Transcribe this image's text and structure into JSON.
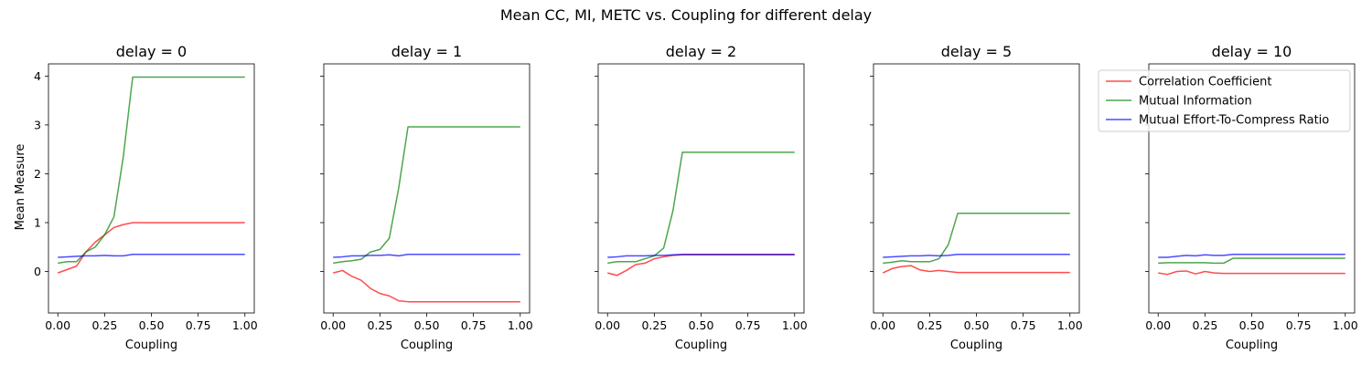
{
  "suptitle": "Mean CC, MI, METC vs. Coupling for different delay",
  "ylabel": "Mean Measure",
  "chart_data": {
    "type": "line",
    "ylim": [
      -0.85,
      4.25
    ],
    "xlim": [
      -0.05,
      1.05
    ],
    "xticks": [
      "0.00",
      "0.25",
      "0.50",
      "0.75",
      "1.00"
    ],
    "yticks": [
      "0",
      "1",
      "2",
      "3",
      "4"
    ],
    "series_meta": [
      {
        "name": "Correlation Coefficient",
        "color": "#ff0000"
      },
      {
        "name": "Mutual Information",
        "color": "#008000"
      },
      {
        "name": "Mutual Effort-To-Compress Ratio",
        "color": "#0000ff"
      }
    ],
    "legend_loc": "upper-right",
    "x": [
      0.0,
      0.05,
      0.1,
      0.15,
      0.2,
      0.25,
      0.3,
      0.35,
      0.4,
      0.45,
      0.5,
      0.55,
      0.6,
      0.65,
      0.7,
      0.75,
      0.8,
      0.85,
      0.9,
      0.95,
      1.0
    ],
    "panels": [
      {
        "title": "delay = 0",
        "xlabel": "Coupling",
        "series": [
          {
            "name": "Correlation Coefficient",
            "values": [
              -0.03,
              0.04,
              0.11,
              0.4,
              0.6,
              0.75,
              0.9,
              0.96,
              1.0,
              1.0,
              1.0,
              1.0,
              1.0,
              1.0,
              1.0,
              1.0,
              1.0,
              1.0,
              1.0,
              1.0,
              1.0
            ]
          },
          {
            "name": "Mutual Information",
            "values": [
              0.17,
              0.2,
              0.2,
              0.4,
              0.5,
              0.75,
              1.12,
              2.35,
              3.98,
              3.98,
              3.98,
              3.98,
              3.98,
              3.98,
              3.98,
              3.98,
              3.98,
              3.98,
              3.98,
              3.98,
              3.98
            ]
          },
          {
            "name": "Mutual Effort-To-Compress Ratio",
            "values": [
              0.29,
              0.3,
              0.31,
              0.32,
              0.32,
              0.33,
              0.32,
              0.32,
              0.35,
              0.35,
              0.35,
              0.35,
              0.35,
              0.35,
              0.35,
              0.35,
              0.35,
              0.35,
              0.35,
              0.35,
              0.35
            ]
          }
        ]
      },
      {
        "title": "delay = 1",
        "xlabel": "Coupling",
        "series": [
          {
            "name": "Correlation Coefficient",
            "values": [
              -0.03,
              0.02,
              -0.1,
              -0.18,
              -0.35,
              -0.45,
              -0.5,
              -0.6,
              -0.62,
              -0.62,
              -0.62,
              -0.62,
              -0.62,
              -0.62,
              -0.62,
              -0.62,
              -0.62,
              -0.62,
              -0.62,
              -0.62,
              -0.62
            ]
          },
          {
            "name": "Mutual Information",
            "values": [
              0.17,
              0.2,
              0.22,
              0.25,
              0.4,
              0.45,
              0.68,
              1.7,
              2.96,
              2.96,
              2.96,
              2.96,
              2.96,
              2.96,
              2.96,
              2.96,
              2.96,
              2.96,
              2.96,
              2.96,
              2.96
            ]
          },
          {
            "name": "Mutual Effort-To-Compress Ratio",
            "values": [
              0.29,
              0.3,
              0.32,
              0.32,
              0.33,
              0.33,
              0.34,
              0.32,
              0.35,
              0.35,
              0.35,
              0.35,
              0.35,
              0.35,
              0.35,
              0.35,
              0.35,
              0.35,
              0.35,
              0.35,
              0.35
            ]
          }
        ]
      },
      {
        "title": "delay = 2",
        "xlabel": "Coupling",
        "series": [
          {
            "name": "Correlation Coefficient",
            "values": [
              -0.03,
              -0.08,
              0.02,
              0.14,
              0.17,
              0.26,
              0.3,
              0.33,
              0.34,
              0.34,
              0.34,
              0.34,
              0.34,
              0.34,
              0.34,
              0.34,
              0.34,
              0.34,
              0.34,
              0.34,
              0.34
            ]
          },
          {
            "name": "Mutual Information",
            "values": [
              0.17,
              0.2,
              0.2,
              0.2,
              0.26,
              0.32,
              0.48,
              1.25,
              2.44,
              2.44,
              2.44,
              2.44,
              2.44,
              2.44,
              2.44,
              2.44,
              2.44,
              2.44,
              2.44,
              2.44,
              2.44
            ]
          },
          {
            "name": "Mutual Effort-To-Compress Ratio",
            "values": [
              0.29,
              0.3,
              0.32,
              0.32,
              0.32,
              0.33,
              0.33,
              0.34,
              0.35,
              0.35,
              0.35,
              0.35,
              0.35,
              0.35,
              0.35,
              0.35,
              0.35,
              0.35,
              0.35,
              0.35,
              0.35
            ]
          }
        ]
      },
      {
        "title": "delay = 5",
        "xlabel": "Coupling",
        "series": [
          {
            "name": "Correlation Coefficient",
            "values": [
              -0.03,
              0.06,
              0.1,
              0.12,
              0.03,
              0.0,
              0.02,
              0.0,
              -0.02,
              -0.02,
              -0.02,
              -0.02,
              -0.02,
              -0.02,
              -0.02,
              -0.02,
              -0.02,
              -0.02,
              -0.02,
              -0.02,
              -0.02
            ]
          },
          {
            "name": "Mutual Information",
            "values": [
              0.17,
              0.19,
              0.22,
              0.2,
              0.2,
              0.2,
              0.26,
              0.55,
              1.19,
              1.19,
              1.19,
              1.19,
              1.19,
              1.19,
              1.19,
              1.19,
              1.19,
              1.19,
              1.19,
              1.19,
              1.19
            ]
          },
          {
            "name": "Mutual Effort-To-Compress Ratio",
            "values": [
              0.29,
              0.3,
              0.31,
              0.32,
              0.32,
              0.33,
              0.32,
              0.33,
              0.35,
              0.35,
              0.35,
              0.35,
              0.35,
              0.35,
              0.35,
              0.35,
              0.35,
              0.35,
              0.35,
              0.35,
              0.35
            ]
          }
        ]
      },
      {
        "title": "delay = 10",
        "xlabel": "Coupling",
        "series": [
          {
            "name": "Correlation Coefficient",
            "values": [
              -0.03,
              -0.06,
              0.0,
              0.01,
              -0.05,
              0.0,
              -0.03,
              -0.04,
              -0.04,
              -0.04,
              -0.04,
              -0.04,
              -0.04,
              -0.04,
              -0.04,
              -0.04,
              -0.04,
              -0.04,
              -0.04,
              -0.04,
              -0.04
            ]
          },
          {
            "name": "Mutual Information",
            "values": [
              0.17,
              0.18,
              0.18,
              0.18,
              0.18,
              0.18,
              0.17,
              0.17,
              0.27,
              0.27,
              0.27,
              0.27,
              0.27,
              0.27,
              0.27,
              0.27,
              0.27,
              0.27,
              0.27,
              0.27,
              0.27
            ]
          },
          {
            "name": "Mutual Effort-To-Compress Ratio",
            "values": [
              0.29,
              0.29,
              0.31,
              0.33,
              0.32,
              0.34,
              0.33,
              0.33,
              0.35,
              0.35,
              0.35,
              0.35,
              0.35,
              0.35,
              0.35,
              0.35,
              0.35,
              0.35,
              0.35,
              0.35,
              0.35
            ]
          }
        ]
      }
    ]
  }
}
